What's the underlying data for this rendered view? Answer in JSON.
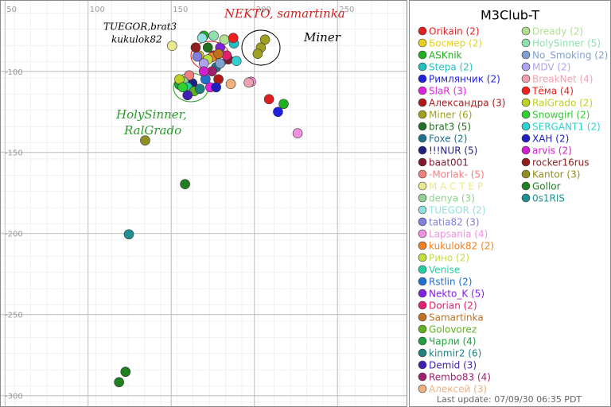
{
  "chart_data": {
    "type": "scatter",
    "title": "M3Club-T",
    "footer": "Last update: 07/09/30 06:35 PDT",
    "xlim": [
      47,
      292
    ],
    "ylim": [
      -307,
      -56
    ],
    "xticks": [
      50,
      100,
      150,
      200,
      250
    ],
    "yticks": [
      -100,
      -150,
      -200,
      -250,
      -300
    ],
    "grid": true,
    "annotations": [
      {
        "text": "NEKTO, samartinka",
        "color": "#d42020"
      },
      {
        "text": "Miner",
        "color": "#000000"
      },
      {
        "text": "TUEGOR,brat3",
        "color": "#000000"
      },
      {
        "text": "kukulok82",
        "color": "#000000"
      },
      {
        "text": "HolySinner,",
        "color": "#2a9a2a"
      },
      {
        "text": "RalGrado",
        "color": "#2a9a2a"
      }
    ],
    "series": [
      {
        "name": "Orikain (2)",
        "color": "#e02020",
        "x": [
          208.8,
          175.5
        ],
        "values": [
          -117.2,
          -90.2
        ]
      },
      {
        "name": "Босмер (2)",
        "color": "#e8d020",
        "x": [
          166.7
        ],
        "values": [
          -90.2
        ]
      },
      {
        "name": "ASKnik",
        "color": "#20b020",
        "x": [
          217.6,
          169.6
        ],
        "values": [
          -120.1,
          -78
        ]
      },
      {
        "name": "Stepa (2)",
        "color": "#20c0c0",
        "x": [
          187.7
        ],
        "values": [
          -82.8
        ]
      },
      {
        "name": "Римлянчик (2)",
        "color": "#2020e0",
        "x": [
          214.2
        ],
        "values": [
          -125
        ]
      },
      {
        "name": "SlaR (3)",
        "color": "#e020e0",
        "x": [
          173.5
        ],
        "values": [
          -109.8
        ]
      },
      {
        "name": "Александра (3)",
        "color": "#b01818",
        "x": [
          178.4
        ],
        "values": [
          -104.9
        ]
      },
      {
        "name": "Miner (6)",
        "color": "#a0a020",
        "x": [
          206.4,
          203.9,
          202
        ],
        "values": [
          -80.4,
          -85.3,
          -89.2
        ]
      },
      {
        "name": "brat3 (5)",
        "color": "#207020",
        "x": [
          172
        ],
        "values": [
          -85.3
        ]
      },
      {
        "name": "Foxe (2)",
        "color": "#207090",
        "x": [
          177
        ],
        "values": [
          -97.5
        ]
      },
      {
        "name": "!!!NUR (5)",
        "color": "#202080",
        "x": [
          162.7
        ],
        "values": [
          -107.4
        ]
      },
      {
        "name": "baat001",
        "color": "#801830",
        "x": [
          184.3
        ],
        "values": [
          -92.6
        ]
      },
      {
        "name": "-Morlak- (5)",
        "color": "#f08080",
        "x": [
          160.8
        ],
        "values": [
          -102.5
        ]
      },
      {
        "name": "М А С Т Е Р",
        "color": "#e8e890",
        "x": [
          150.5
        ],
        "values": [
          -84.3
        ]
      },
      {
        "name": "denya (3)",
        "color": "#90d090",
        "x": [
          157.4
        ],
        "values": [
          -106.4
        ]
      },
      {
        "name": "TUEGOR (2)",
        "color": "#90e0e0",
        "x": [
          168.6
        ],
        "values": [
          -79.4
        ]
      },
      {
        "name": "tatia82 (3)",
        "color": "#8080e0",
        "x": [
          165.7
        ],
        "values": [
          -90.8
        ]
      },
      {
        "name": "Lapsania (4)",
        "color": "#f090e0",
        "x": [
          226,
          198
        ],
        "values": [
          -138.2,
          -106.4
        ]
      },
      {
        "name": "kukulok82 (2)",
        "color": "#f08020",
        "x": [
          174.5
        ],
        "values": [
          -91.2
        ]
      },
      {
        "name": "Рино (2)",
        "color": "#c0e040",
        "x": [
          172
        ],
        "values": [
          -92.6
        ]
      },
      {
        "name": "Venise",
        "color": "#20d0a0",
        "x": [
          159.8
        ],
        "values": [
          -109.8
        ]
      },
      {
        "name": "Rstlin (2)",
        "color": "#2070d0",
        "x": [
          170.6
        ],
        "values": [
          -104.9
        ]
      },
      {
        "name": "Nekto_K (5)",
        "color": "#8020e0",
        "x": [
          179.4
        ],
        "values": [
          -85.3
        ]
      },
      {
        "name": "Dorian (2)",
        "color": "#e02070",
        "x": [
          183.3
        ],
        "values": [
          -90.2
        ]
      },
      {
        "name": "Samartinka",
        "color": "#c07020",
        "x": [
          178.4
        ],
        "values": [
          -89.2
        ]
      },
      {
        "name": "Golovorez",
        "color": "#60b020",
        "x": [
          163.7
        ],
        "values": [
          -112.3
        ]
      },
      {
        "name": "Чарли (4)",
        "color": "#20a040",
        "x": [
          154.9
        ],
        "values": [
          -108.3
        ]
      },
      {
        "name": "kinmir2 (6)",
        "color": "#208080",
        "x": [
          167.2
        ],
        "values": [
          -110.8
        ]
      },
      {
        "name": "Demid (3)",
        "color": "#4020b0",
        "x": [
          159.8
        ],
        "values": [
          -114.7
        ]
      },
      {
        "name": "Rembo83 (4)",
        "color": "#a02070",
        "x": [
          174.5
        ],
        "values": [
          -100
        ]
      },
      {
        "name": "Алексей (3)",
        "color": "#f0b080",
        "x": [
          185.8
        ],
        "values": [
          -107.8
        ]
      },
      {
        "name": "Dready (2)",
        "color": "#b0e090",
        "x": [
          181.9
        ],
        "values": [
          -80.4
        ]
      },
      {
        "name": "HolySinner (5)",
        "color": "#90e0b0",
        "x": [
          175.5
        ],
        "values": [
          -78
        ]
      },
      {
        "name": "No_Smoking (2)",
        "color": "#80a0d0",
        "x": [
          179.4
        ],
        "values": [
          -95.1
        ]
      },
      {
        "name": "MDV (2)",
        "color": "#b0a0f0",
        "x": [
          169.6
        ],
        "values": [
          -95.1
        ]
      },
      {
        "name": "BreakNet (4)",
        "color": "#f0a0b0",
        "x": [
          196.6
        ],
        "values": [
          -106.9
        ]
      },
      {
        "name": "Тёма (4)",
        "color": "#f02020",
        "x": [
          187.3
        ],
        "values": [
          -79.4
        ]
      },
      {
        "name": "RalGrado (2)",
        "color": "#c0d020",
        "x": [
          154.9
        ],
        "values": [
          -104.9
        ]
      },
      {
        "name": "Snowgirl (2)",
        "color": "#30d030",
        "x": [
          156.9
        ],
        "values": [
          -109.8
        ]
      },
      {
        "name": "SERGANT1 (2)",
        "color": "#30d0d0",
        "x": [
          189.2
        ],
        "values": [
          -93.6
        ]
      },
      {
        "name": "ХАН (2)",
        "color": "#2020c0",
        "x": [
          177
        ],
        "values": [
          -109.8
        ]
      },
      {
        "name": "arvis (2)",
        "color": "#d020d0",
        "x": [
          169.6
        ],
        "values": [
          -100
        ]
      },
      {
        "name": "rocker16rus",
        "color": "#902020",
        "x": [
          164.7
        ],
        "values": [
          -85.3
        ]
      },
      {
        "name": "Kantor (3)",
        "color": "#909020",
        "x": [
          134.3
        ],
        "values": [
          -142.6
        ]
      },
      {
        "name": "Gollor",
        "color": "#208020",
        "x": [
          158.3,
          122.5,
          118.6
        ],
        "values": [
          -169.6,
          -285.3,
          -291.7
        ]
      },
      {
        "name": "0s1RIS",
        "color": "#209090",
        "x": [
          124.5
        ],
        "values": [
          -200.5
        ]
      }
    ]
  }
}
